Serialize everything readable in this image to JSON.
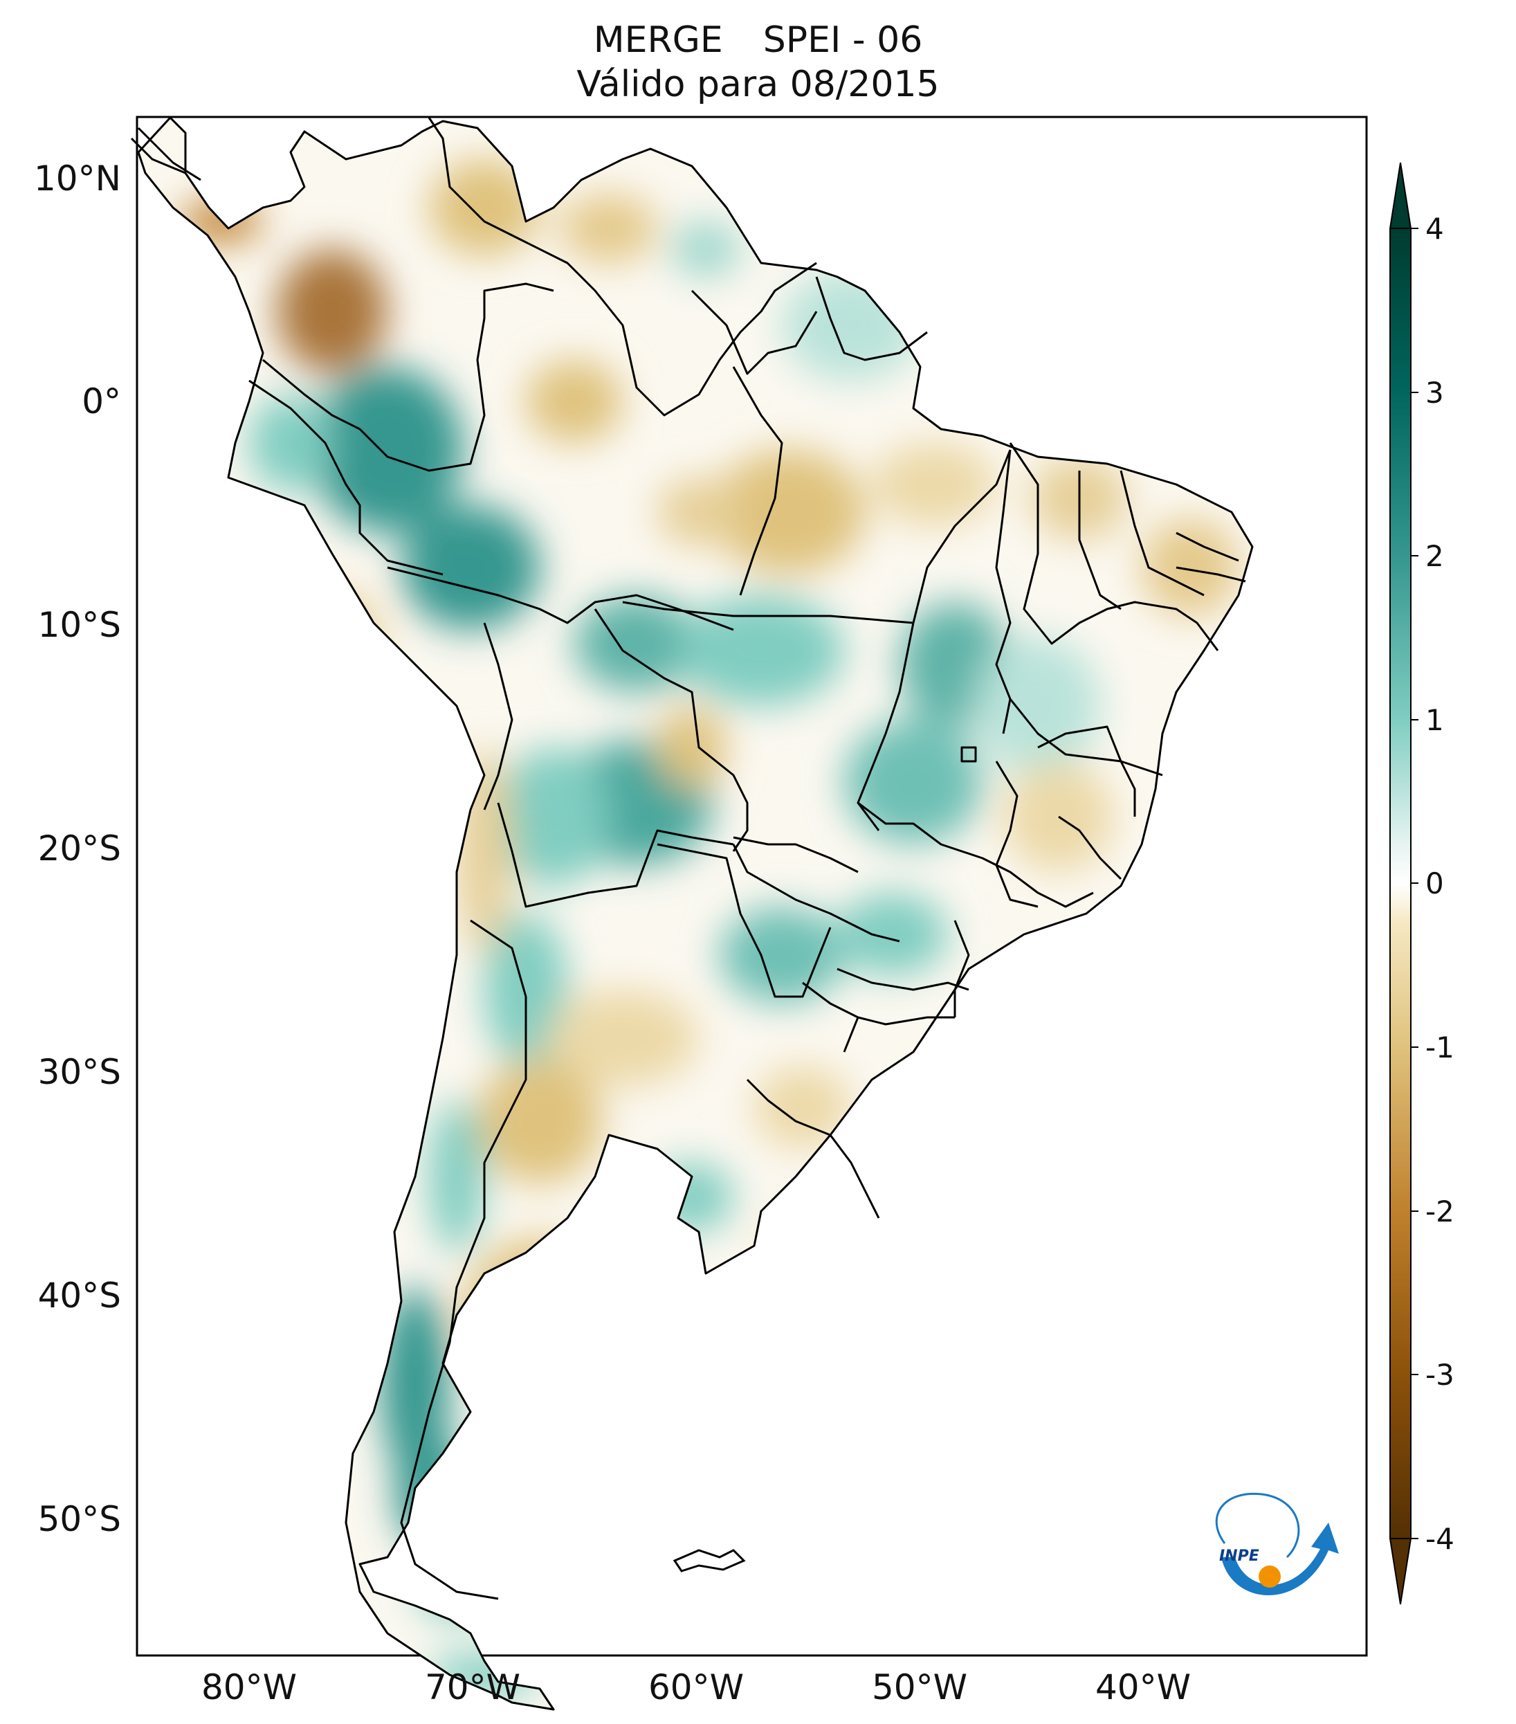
{
  "title": {
    "dataset": "MERGE",
    "index": "SPEI - 06",
    "validity": "Válido para 08/2015"
  },
  "axes": {
    "lat_labels": [
      "10°N",
      "0°",
      "10°S",
      "20°S",
      "30°S",
      "40°S",
      "50°S"
    ],
    "lat_values": [
      10,
      0,
      -10,
      -20,
      -30,
      -40,
      -50
    ],
    "lon_labels": [
      "80°W",
      "70°W",
      "60°W",
      "50°W",
      "40°W"
    ],
    "lon_values": [
      -80,
      -70,
      -60,
      -50,
      -40
    ],
    "lat_range": [
      -56,
      13
    ],
    "lon_range": [
      -85,
      -30
    ]
  },
  "colorbar": {
    "ticks": [
      "4",
      "3",
      "2",
      "1",
      "0",
      "-1",
      "-2",
      "-3",
      "-4"
    ],
    "tick_values": [
      4,
      3,
      2,
      1,
      0,
      -1,
      -2,
      -3,
      -4
    ],
    "range": [
      -4,
      4
    ],
    "extend": "both",
    "colormap": "BrBG",
    "colors": {
      "max": "#003c30",
      "p3": "#01665e",
      "p2": "#35978f",
      "p1": "#80cdc1",
      "zero": "#ffffff",
      "n1": "#f6e8c3",
      "n2": "#dfc27d",
      "n3": "#bf812d",
      "min": "#543005"
    }
  },
  "logo": {
    "text": "INPE",
    "colors": {
      "arc": "#1a7ac4",
      "dot": "#f39200"
    }
  },
  "colors": {
    "frame": "#000000",
    "border": "#000000",
    "wet": "#80cdc1",
    "wet_strong": "#35978f",
    "dry": "#dfc27d",
    "dry_strong": "#bf812d"
  }
}
